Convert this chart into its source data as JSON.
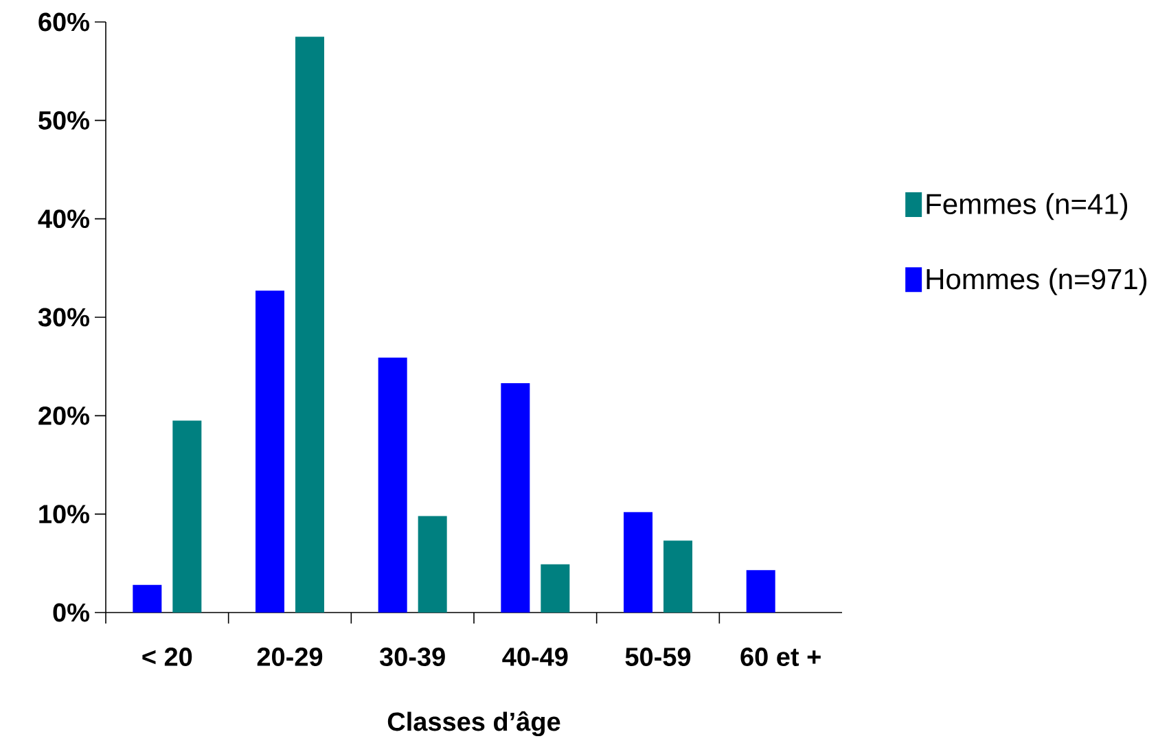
{
  "chart_data": {
    "type": "bar",
    "xlabel": "Classes d’âge",
    "categories": [
      "< 20",
      "20-29",
      "30-39",
      "40-49",
      "50-59",
      "60 et +"
    ],
    "series": [
      {
        "name": "Hommes (n=971)",
        "color": "#0000ff",
        "values": [
          2.8,
          32.7,
          25.9,
          23.3,
          10.2,
          4.3
        ]
      },
      {
        "name": "Femmes (n=41)",
        "color": "#008080",
        "values": [
          19.5,
          58.5,
          9.8,
          4.9,
          7.3,
          null
        ]
      }
    ],
    "ylim": [
      0,
      60
    ],
    "yticks": [
      {
        "value": 0,
        "label": "0%"
      },
      {
        "value": 10,
        "label": "10%"
      },
      {
        "value": 20,
        "label": "20%"
      },
      {
        "value": 30,
        "label": "30%"
      },
      {
        "value": 40,
        "label": "40%"
      },
      {
        "value": 50,
        "label": "50%"
      },
      {
        "value": 60,
        "label": "60%"
      }
    ],
    "grid": false,
    "legend": "right"
  }
}
